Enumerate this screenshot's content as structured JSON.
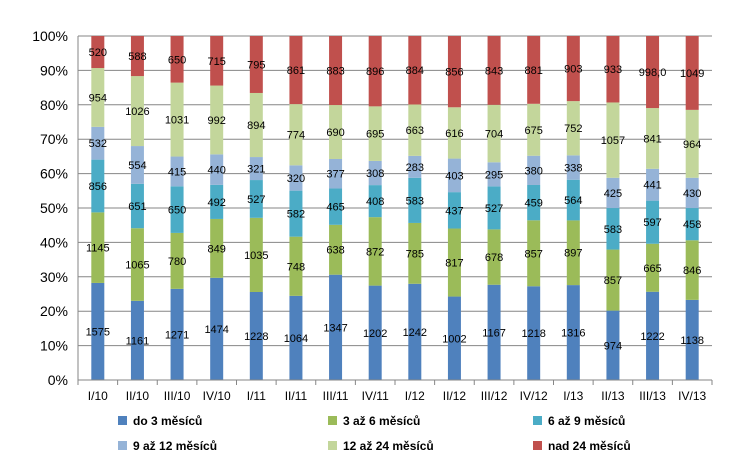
{
  "chart_data": {
    "type": "bar",
    "stacked": "percent",
    "categories": [
      "I/10",
      "II/10",
      "III/10",
      "IV/10",
      "I/11",
      "II/11",
      "III/11",
      "IV/11",
      "I/12",
      "II/12",
      "III/12",
      "IV/12",
      "I/13",
      "II/13",
      "III/13",
      "IV/13"
    ],
    "y_axis_ticks": [
      "0%",
      "10%",
      "20%",
      "30%",
      "40%",
      "50%",
      "60%",
      "70%",
      "80%",
      "90%",
      "100%"
    ],
    "ylim": [
      0,
      100
    ],
    "grid": true,
    "legend_position": "bottom",
    "series": [
      {
        "name": "do 3 měsíců",
        "color": "#4F81BD",
        "values": [
          1575,
          1161,
          1271,
          1474,
          1228,
          1064,
          1347,
          1202,
          1242,
          1002,
          1167,
          1218,
          1316,
          974,
          1222,
          1138
        ],
        "labels": [
          "1575",
          "1161",
          "1271",
          "1474",
          "1228",
          "1064",
          "1347",
          "1202",
          "1242",
          "1002",
          "1167",
          "1218",
          "1316",
          "974",
          "1222",
          "1138"
        ]
      },
      {
        "name": "3 až 6 měsíců",
        "color": "#9BBB59",
        "values": [
          1145,
          1065,
          780,
          849,
          1035,
          748,
          638,
          872,
          785,
          817,
          678,
          857,
          897,
          857,
          665,
          846
        ],
        "labels": [
          "1145",
          "1065",
          "780",
          "849",
          "1035",
          "748",
          "638",
          "872",
          "785",
          "817",
          "678",
          "857",
          "897",
          "857",
          "665",
          "846"
        ]
      },
      {
        "name": "6 až 9 měsíců",
        "color": "#4BACC6",
        "values": [
          856,
          651,
          650,
          492,
          527,
          582,
          465,
          408,
          583,
          437,
          527,
          459,
          564,
          583,
          597,
          458
        ],
        "labels": [
          "856",
          "651",
          "650",
          "492",
          "527",
          "582",
          "465",
          "408",
          "583",
          "437",
          "527",
          "459",
          "564",
          "583",
          "597",
          "458"
        ]
      },
      {
        "name": "9 až 12 měsíců",
        "color": "#95B3D7",
        "values": [
          532,
          554,
          415,
          440,
          321,
          320,
          377,
          308,
          283,
          403,
          295,
          380,
          338,
          425,
          441,
          430
        ],
        "labels": [
          "532",
          "554",
          "415",
          "440",
          "321",
          "320",
          "377",
          "308",
          "283",
          "403",
          "295",
          "380",
          "338",
          "425",
          "441",
          "430"
        ]
      },
      {
        "name": "12 až 24 měsíců",
        "color": "#C3D69B",
        "values": [
          954,
          1026,
          1031,
          992,
          894,
          774,
          690,
          695,
          663,
          616,
          704,
          675,
          752,
          1057,
          841,
          964
        ],
        "labels": [
          "954",
          "1026",
          "1031",
          "992",
          "894",
          "774",
          "690",
          "695",
          "663",
          "616",
          "704",
          "675",
          "752",
          "1057",
          "841",
          "964"
        ]
      },
      {
        "name": "nad 24 měsíců",
        "color": "#C0504D",
        "values": [
          520,
          588,
          650,
          715,
          795,
          861,
          883,
          896,
          884,
          856,
          843,
          881,
          903,
          933,
          998,
          1049
        ],
        "labels": [
          "520",
          "588",
          "650",
          "715",
          "795",
          "861",
          "883",
          "896",
          "884",
          "856",
          "843",
          "881",
          "903",
          "933",
          "998,0",
          "1049"
        ]
      }
    ]
  }
}
